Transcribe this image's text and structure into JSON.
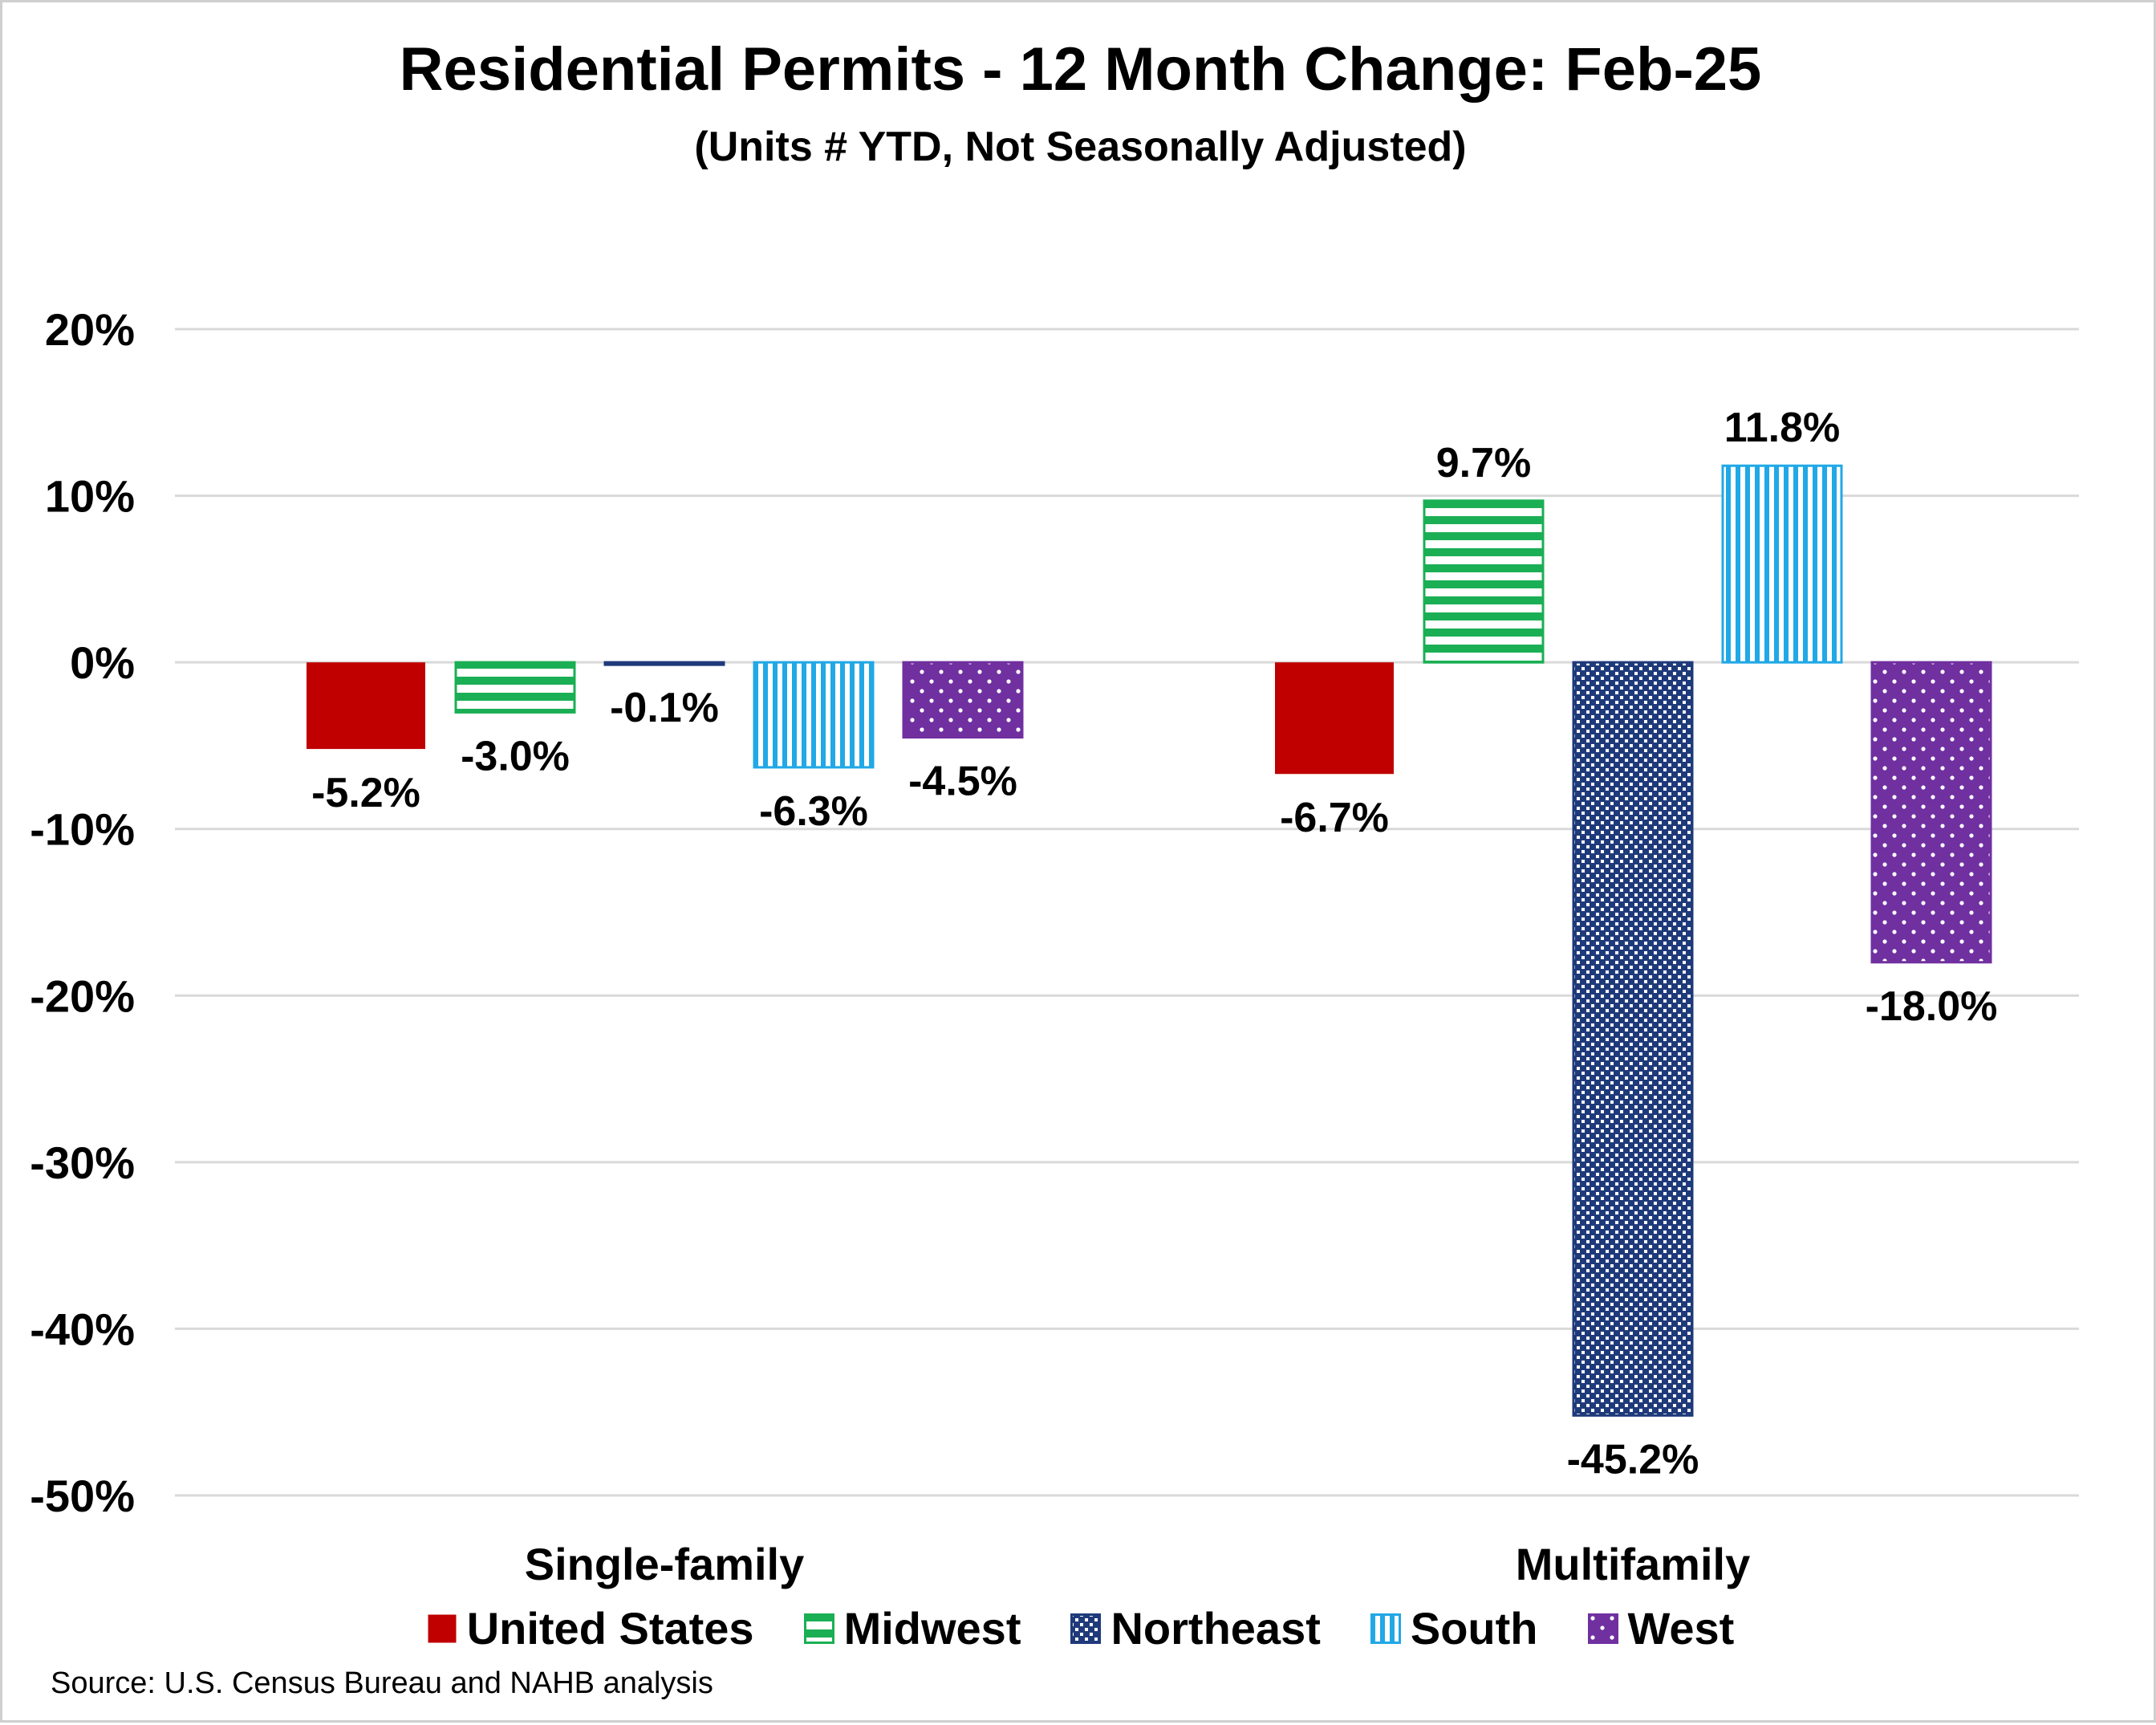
{
  "chart_data": {
    "type": "bar",
    "title": "Residential Permits - 12 Month Change:  Feb-25",
    "subtitle": "(Units # YTD, Not Seasonally Adjusted)",
    "categories": [
      "Single-family",
      "Multifamily"
    ],
    "series": [
      {
        "name": "United States",
        "values": [
          -5.2,
          -6.7
        ],
        "labels": [
          "-5.2%",
          "-6.7%"
        ],
        "color": "#c00000",
        "pattern": "solid"
      },
      {
        "name": "Midwest",
        "values": [
          -3.0,
          9.7
        ],
        "labels": [
          "-3.0%",
          "9.7%"
        ],
        "color": "#1aaf54",
        "pattern": "horizontal-stripes"
      },
      {
        "name": "Northeast",
        "values": [
          -0.1,
          -45.2
        ],
        "labels": [
          "-0.1%",
          "-45.2%"
        ],
        "color": "#1f3a7a",
        "pattern": "checkered"
      },
      {
        "name": "South",
        "values": [
          -6.3,
          11.8
        ],
        "labels": [
          "-6.3%",
          "11.8%"
        ],
        "color": "#21a8e6",
        "pattern": "vertical-stripes"
      },
      {
        "name": "West",
        "values": [
          -4.5,
          -18.0
        ],
        "labels": [
          "-4.5%",
          "-18.0%"
        ],
        "color": "#7030a0",
        "pattern": "dots"
      }
    ],
    "y_ticks": [
      "20%",
      "10%",
      "0%",
      "-10%",
      "-20%",
      "-30%",
      "-40%",
      "-50%"
    ],
    "y_tick_values": [
      20,
      10,
      0,
      -10,
      -20,
      -30,
      -40,
      -50
    ],
    "ylim": [
      -50,
      20
    ],
    "grid": true,
    "legend_position": "bottom",
    "xlabel": "",
    "ylabel": ""
  },
  "source_note": "Source: U.S. Census Bureau and NAHB analysis"
}
